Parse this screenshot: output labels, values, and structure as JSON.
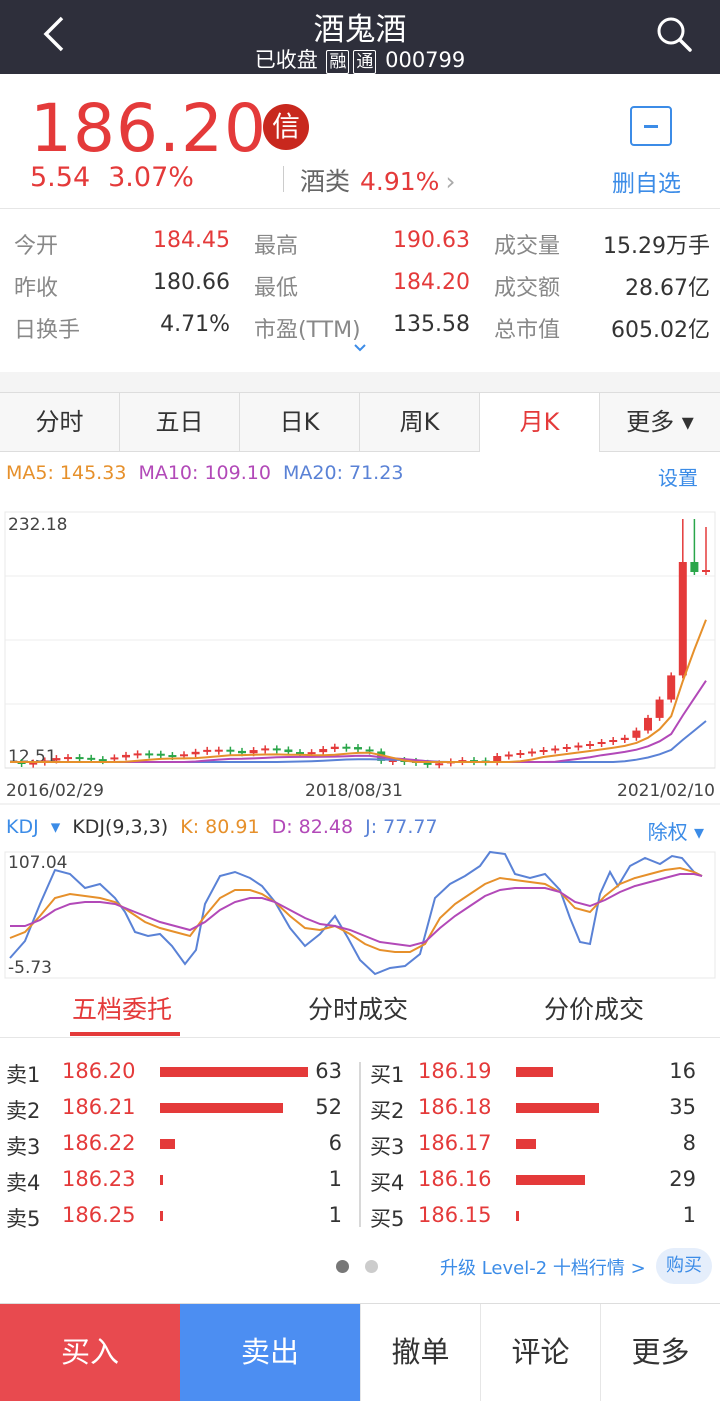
{
  "header": {
    "title": "酒鬼酒",
    "status": "已收盘",
    "tag1": "融",
    "tag2": "通",
    "code": "000799"
  },
  "quote": {
    "price": "186.20",
    "change": "5.54",
    "change_pct": "3.07%",
    "badge": "信",
    "sector_name": "酒类",
    "sector_pct": "4.91%",
    "watch_label": "删自选"
  },
  "stats": [
    {
      "label": "今开",
      "value": "184.45",
      "color": "red"
    },
    {
      "label": "最高",
      "value": "190.63",
      "color": "red"
    },
    {
      "label": "成交量",
      "value": "15.29万手",
      "color": "dark"
    },
    {
      "label": "昨收",
      "value": "180.66",
      "color": "dark"
    },
    {
      "label": "最低",
      "value": "184.20",
      "color": "red"
    },
    {
      "label": "成交额",
      "value": "28.67亿",
      "color": "dark"
    },
    {
      "label": "日换手",
      "value": "4.71%",
      "color": "dark"
    },
    {
      "label": "市盈(TTM)",
      "value": "135.58",
      "color": "dark"
    },
    {
      "label": "总市值",
      "value": "605.02亿",
      "color": "dark"
    }
  ],
  "tabs": [
    "分时",
    "五日",
    "日K",
    "周K",
    "月K",
    "更多 ▾"
  ],
  "active_tab": 4,
  "ma": {
    "ma5": "MA5: 145.33",
    "ma10": "MA10: 109.10",
    "ma20": "MA20: 71.23",
    "settings": "设置",
    "colors": {
      "ma5": "#e6902b",
      "ma10": "#b249b8",
      "ma20": "#5a82d6"
    }
  },
  "kline": {
    "high_label": "232.18",
    "low_label": "12.51",
    "x_labels": [
      "2016/02/29",
      "2018/08/31",
      "2021/02/10"
    ],
    "ylim": [
      12.51,
      232.18
    ]
  },
  "kdj": {
    "name": "KDJ",
    "params": "KDJ(9,3,3)",
    "k": "K: 80.91",
    "d": "D: 82.48",
    "j": "J: 77.77",
    "adjust": "除权",
    "high_label": "107.04",
    "low_label": "-5.73"
  },
  "order_tabs": [
    "五档委托",
    "分时成交",
    "分价成交"
  ],
  "sell_book": [
    {
      "label": "卖1",
      "price": "186.20",
      "vol": "63"
    },
    {
      "label": "卖2",
      "price": "186.21",
      "vol": "52"
    },
    {
      "label": "卖3",
      "price": "186.22",
      "vol": "6"
    },
    {
      "label": "卖4",
      "price": "186.23",
      "vol": "1"
    },
    {
      "label": "卖5",
      "price": "186.25",
      "vol": "1"
    }
  ],
  "buy_book": [
    {
      "label": "买1",
      "price": "186.19",
      "vol": "16"
    },
    {
      "label": "买2",
      "price": "186.18",
      "vol": "35"
    },
    {
      "label": "买3",
      "price": "186.17",
      "vol": "8"
    },
    {
      "label": "买4",
      "price": "186.16",
      "vol": "29"
    },
    {
      "label": "买5",
      "price": "186.15",
      "vol": "1"
    }
  ],
  "upgrade_text": "升级 Level-2 十档行情 >",
  "buy_pill": "购买",
  "bottom": {
    "buy": "买入",
    "sell": "卖出",
    "cancel": "撤单",
    "comment": "评论",
    "more": "更多"
  }
}
